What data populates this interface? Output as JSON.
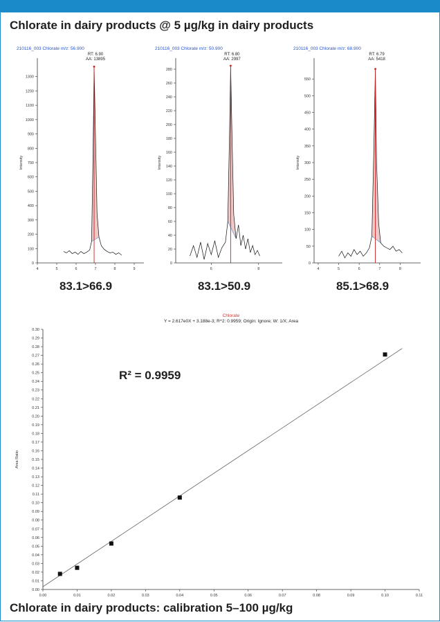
{
  "header": {
    "title": "Chlorate in dairy products @ 5 µg/kg in dairy products"
  },
  "footer": {
    "caption": "Chlorate in dairy products: calibration 5–100 µg/kg"
  },
  "colors": {
    "accent_bar": "#1a8ac8",
    "header_text": "#2a55c8",
    "peak_line": "#cc2020",
    "peak_fill": "#e8b0b0",
    "baseline": "#6aa6d8",
    "calib_title": "#e03030"
  },
  "chart_data": [
    {
      "type": "line",
      "header": "210116_003   Chlorate   m/z: 56.900",
      "transition": "83.1>66.9",
      "peak_label": [
        "RT: 6.90",
        "AA: 13895"
      ],
      "xlabel": "RT(min)",
      "ylabel": "Intensity",
      "xlim": [
        4,
        9.5
      ],
      "ylim": [
        0,
        1400
      ],
      "x_ticks": [
        "4",
        "5",
        "6",
        "7",
        "8",
        "9"
      ],
      "y_ticks": [
        "0",
        "100",
        "200",
        "300",
        "400",
        "500",
        "600",
        "700",
        "800",
        "900",
        "1000",
        "1100",
        "1200",
        "1300"
      ],
      "x": [
        5.35,
        5.5,
        5.65,
        5.8,
        5.95,
        6.1,
        6.25,
        6.4,
        6.55,
        6.7,
        6.8,
        6.88,
        6.93,
        7.0,
        7.08,
        7.18,
        7.3,
        7.45,
        7.6,
        7.75,
        7.9,
        8.05,
        8.2,
        8.35
      ],
      "y": [
        80,
        70,
        85,
        65,
        75,
        60,
        80,
        65,
        75,
        90,
        150,
        800,
        1370,
        900,
        350,
        180,
        120,
        95,
        80,
        70,
        75,
        60,
        70,
        55
      ]
    },
    {
      "type": "line",
      "header": "210116_003   Chlorate   m/z: 50.900",
      "transition": "83.1>50.9",
      "peak_label": [
        "RT: 6.80",
        "AA: 2997"
      ],
      "xlabel": "RT(min)",
      "ylabel": "Intensity",
      "xlim": [
        4.5,
        9
      ],
      "ylim": [
        0,
        290
      ],
      "x_ticks": [
        "6",
        "8"
      ],
      "y_ticks": [
        "0",
        "20",
        "40",
        "60",
        "80",
        "100",
        "120",
        "140",
        "160",
        "180",
        "200",
        "220",
        "240",
        "260",
        "280"
      ],
      "x": [
        5.1,
        5.25,
        5.4,
        5.55,
        5.7,
        5.85,
        6.0,
        6.15,
        6.3,
        6.45,
        6.6,
        6.7,
        6.78,
        6.82,
        6.88,
        6.95,
        7.05,
        7.15,
        7.25,
        7.35,
        7.45,
        7.55,
        7.65,
        7.75,
        7.85,
        7.95,
        8.05
      ],
      "y": [
        10,
        25,
        8,
        30,
        5,
        28,
        12,
        32,
        8,
        22,
        30,
        60,
        200,
        285,
        180,
        70,
        35,
        55,
        25,
        40,
        20,
        35,
        15,
        25,
        12,
        18,
        10
      ]
    },
    {
      "type": "line",
      "header": "210116_003   Chlorate   m/z: 68.900",
      "transition": "85.1>68.9",
      "peak_label": [
        "RT: 6.79",
        "AA: 5418"
      ],
      "xlabel": "RT(min)",
      "ylabel": "Intensity",
      "xlim": [
        3.8,
        9
      ],
      "ylim": [
        0,
        600
      ],
      "x_ticks": [
        "4",
        "5",
        "6",
        "7",
        "8"
      ],
      "y_ticks": [
        "0",
        "50",
        "100",
        "150",
        "200",
        "250",
        "300",
        "350",
        "400",
        "450",
        "500",
        "550"
      ],
      "x": [
        5.0,
        5.15,
        5.3,
        5.45,
        5.6,
        5.75,
        5.9,
        6.05,
        6.2,
        6.35,
        6.5,
        6.62,
        6.72,
        6.79,
        6.85,
        6.95,
        7.05,
        7.2,
        7.35,
        7.5,
        7.65,
        7.8,
        7.95,
        8.1
      ],
      "y": [
        20,
        35,
        15,
        30,
        20,
        40,
        25,
        35,
        20,
        30,
        45,
        80,
        350,
        580,
        300,
        120,
        60,
        50,
        45,
        40,
        50,
        35,
        40,
        30
      ]
    },
    {
      "type": "scatter",
      "title": "Chlorate",
      "subtitle": "Y = 2.617e0X + 3.188e-3; R^2: 0.9959; Origin: Ignore; W: 1/X; Area",
      "annotation": "R² = 0.9959",
      "ylabel": "Area Ratio",
      "xlim": [
        0,
        0.11
      ],
      "ylim": [
        0,
        0.3
      ],
      "x_ticks": [
        "0.00",
        "0.01",
        "0.02",
        "0.03",
        "0.04",
        "0.05",
        "0.06",
        "0.07",
        "0.08",
        "0.09",
        "0.10",
        "0.11"
      ],
      "y_ticks": [
        "0.00",
        "0.01",
        "0.02",
        "0.03",
        "0.04",
        "0.05",
        "0.06",
        "0.07",
        "0.08",
        "0.09",
        "0.10",
        "0.11",
        "0.12",
        "0.13",
        "0.14",
        "0.15",
        "0.16",
        "0.17",
        "0.18",
        "0.19",
        "0.20",
        "0.21",
        "0.22",
        "0.23",
        "0.24",
        "0.25",
        "0.26",
        "0.27",
        "0.28",
        "0.29",
        "0.30"
      ],
      "points": {
        "x": [
          0.005,
          0.01,
          0.02,
          0.04,
          0.1
        ],
        "y": [
          0.018,
          0.025,
          0.053,
          0.106,
          0.271
        ]
      },
      "fit": {
        "slope": 2.617,
        "intercept": 0.003188
      }
    }
  ]
}
